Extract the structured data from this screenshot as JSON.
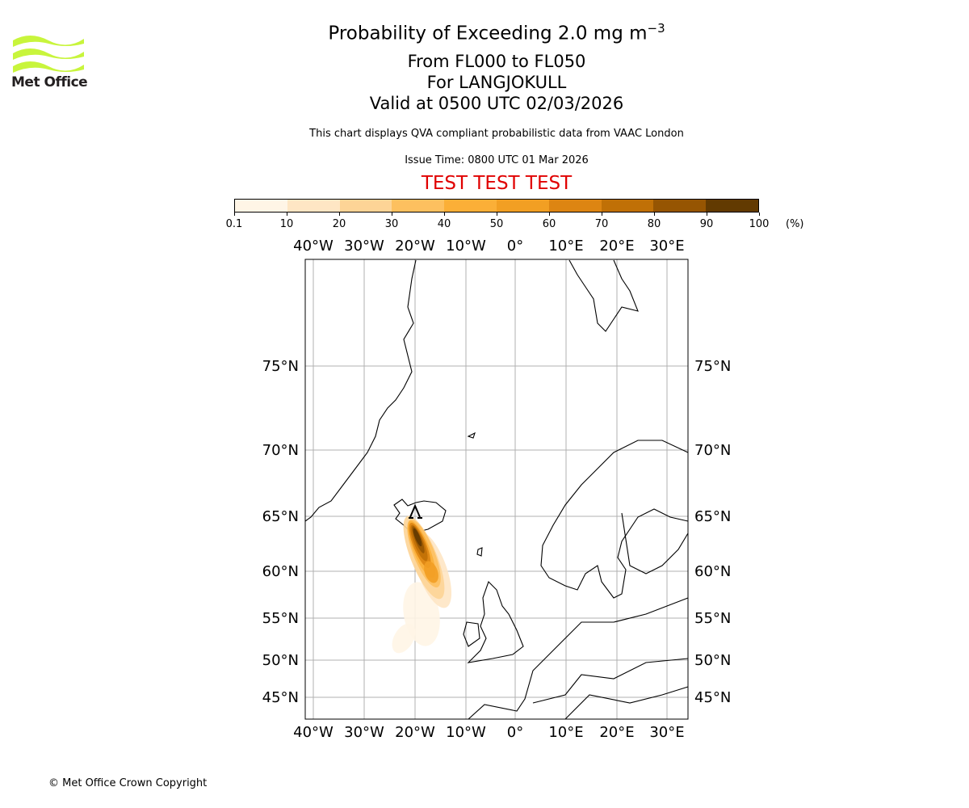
{
  "title": {
    "line1": "Probability of Exceeding 2.0 mg m",
    "line1_sup": "−3",
    "line2": "From FL000 to FL050",
    "line3": "For LANGJOKULL",
    "line4": "Valid at 0500 UTC 02/03/2026"
  },
  "subtitle": "This chart displays QVA compliant probabilistic data from VAAC London",
  "issue_time": "Issue Time: 0800 UTC 01 Mar 2026",
  "test_banner": "TEST TEST TEST",
  "logo": {
    "text": "Met Office",
    "color": "#c8f53c"
  },
  "colorbar": {
    "ticks": [
      "0.1",
      "10",
      "20",
      "30",
      "40",
      "50",
      "60",
      "70",
      "80",
      "90",
      "100"
    ],
    "unit": "(%)",
    "colors": [
      "#fff5e6",
      "#fee6c4",
      "#fdd496",
      "#fdc05f",
      "#fbaf37",
      "#f29f23",
      "#dd8512",
      "#c07006",
      "#965502",
      "#623a01"
    ]
  },
  "map": {
    "lon_labels": [
      "40°W",
      "30°W",
      "20°W",
      "10°W",
      "0°",
      "10°E",
      "20°E",
      "30°E"
    ],
    "lat_labels": [
      "75°N",
      "70°N",
      "65°N",
      "60°N",
      "55°N",
      "50°N",
      "45°N"
    ],
    "volcano": "LANGJOKULL"
  },
  "copyright": "© Met Office Crown Copyright"
}
